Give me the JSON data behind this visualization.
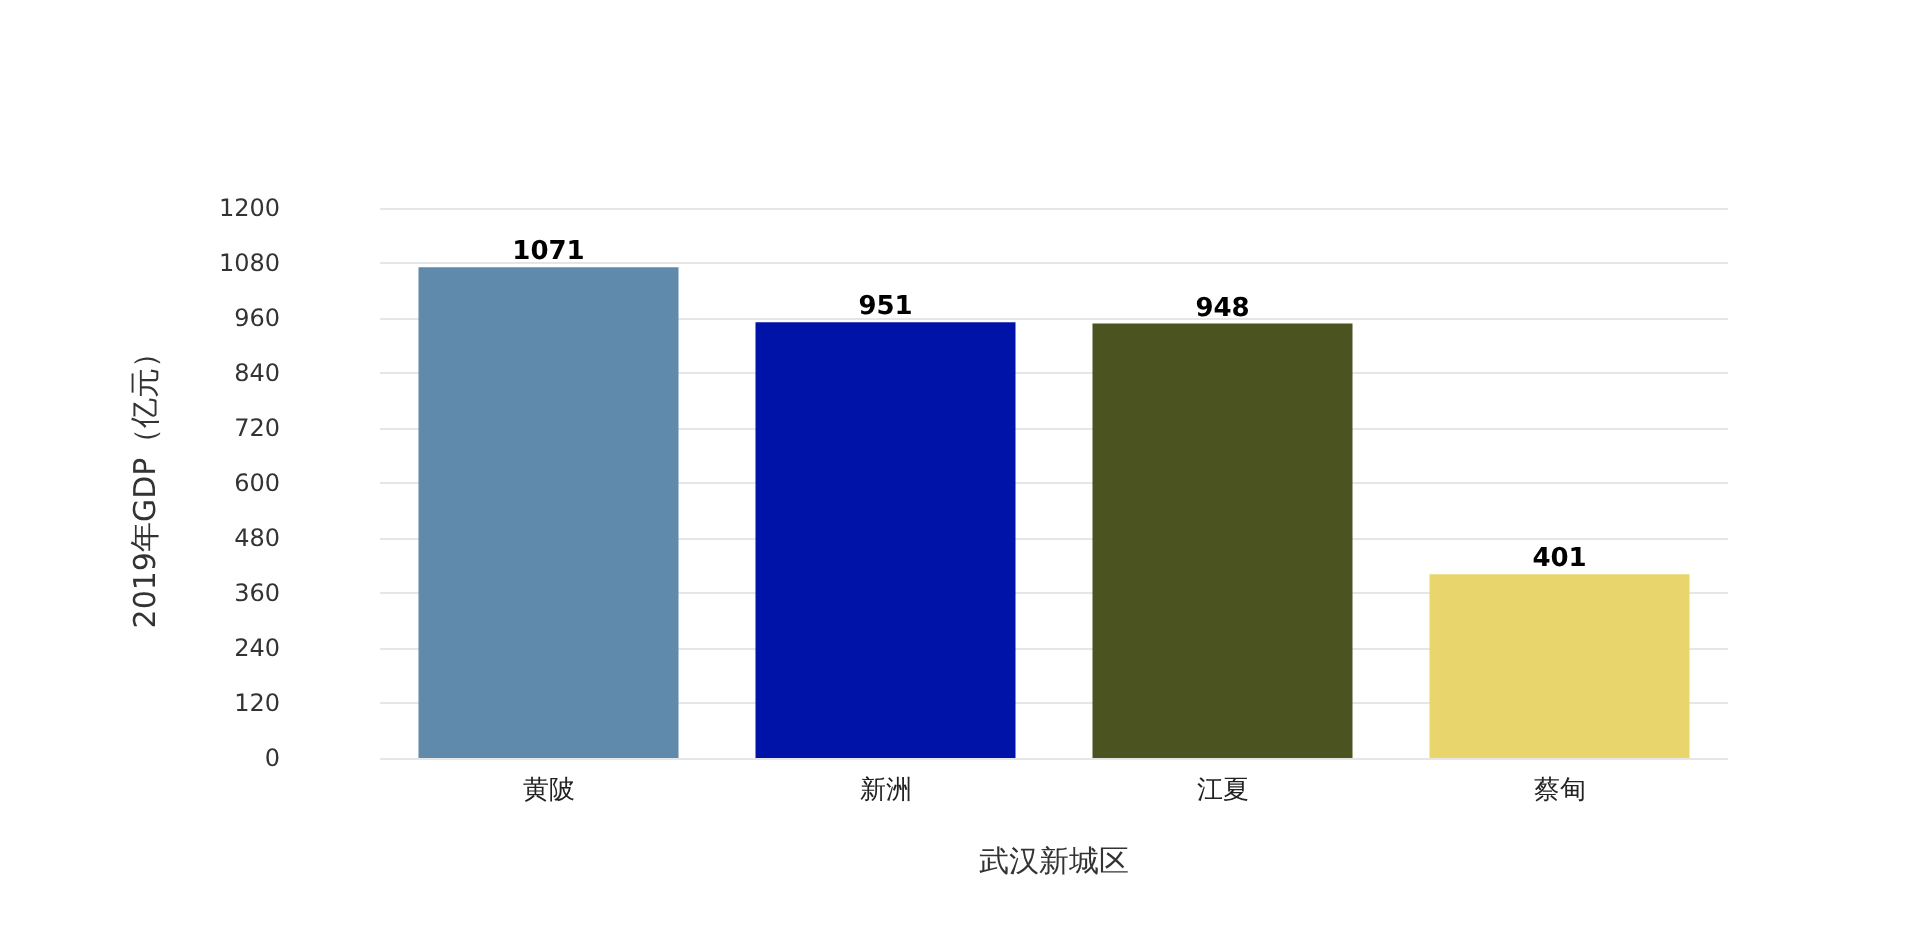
{
  "chart_data": {
    "type": "bar",
    "xlabel": "武汉新城区",
    "ylabel": "2019年GDP（亿元）",
    "categories": [
      "黄陂",
      "新洲",
      "江夏",
      "蔡甸"
    ],
    "values": [
      1071,
      951,
      948,
      401
    ],
    "colors": [
      "#5f8aab",
      "#0013a9",
      "#4b5320",
      "#e8d66c"
    ],
    "ylim": [
      0,
      1200
    ],
    "yticks": [
      0,
      120,
      240,
      360,
      480,
      600,
      720,
      840,
      960,
      1080,
      1200
    ],
    "grid": "y",
    "data_labels": true
  }
}
